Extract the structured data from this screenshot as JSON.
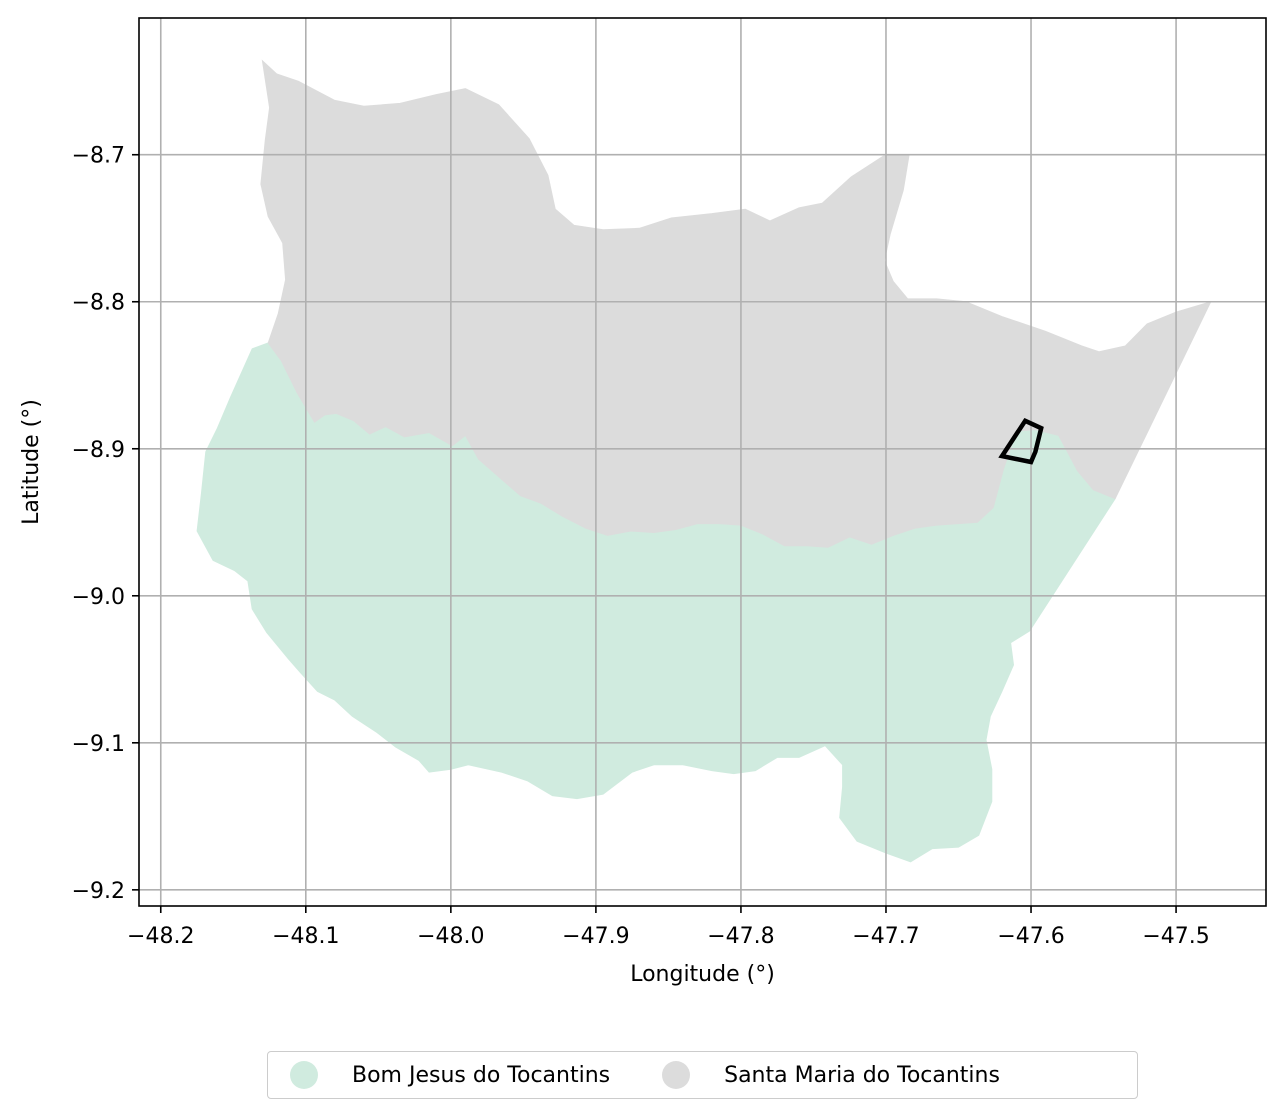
{
  "chart_data": {
    "type": "map",
    "xlabel": "Longitude (°)",
    "ylabel": "Latitude (°)",
    "xlim": [
      -48.215,
      -47.438
    ],
    "ylim": [
      -9.211,
      -8.607
    ],
    "grid": true,
    "xticks": [
      {
        "value": -48.2,
        "label": "−48.2"
      },
      {
        "value": -48.1,
        "label": "−48.1"
      },
      {
        "value": -48.0,
        "label": "−48.0"
      },
      {
        "value": -47.9,
        "label": "−47.9"
      },
      {
        "value": -47.8,
        "label": "−47.8"
      },
      {
        "value": -47.7,
        "label": "−47.7"
      },
      {
        "value": -47.6,
        "label": "−47.6"
      },
      {
        "value": -47.5,
        "label": "−47.5"
      }
    ],
    "yticks": [
      {
        "value": -8.7,
        "label": "−8.7"
      },
      {
        "value": -8.8,
        "label": "−8.8"
      },
      {
        "value": -8.9,
        "label": "−8.9"
      },
      {
        "value": -9.0,
        "label": "−9.0"
      },
      {
        "value": -9.1,
        "label": "−9.1"
      },
      {
        "value": -9.2,
        "label": "−9.2"
      }
    ],
    "legend_position": "bottom-center",
    "regions": [
      {
        "name": "Bom Jesus do Tocantins",
        "color": "#d0ebdf",
        "polygon": [
          [
            -48.137,
            -8.832
          ],
          [
            -48.126,
            -8.828
          ],
          [
            -48.117,
            -8.84
          ],
          [
            -48.106,
            -8.862
          ],
          [
            -48.094,
            -8.882
          ],
          [
            -48.087,
            -8.877
          ],
          [
            -48.079,
            -8.876
          ],
          [
            -48.067,
            -8.881
          ],
          [
            -48.056,
            -8.89
          ],
          [
            -48.045,
            -8.885
          ],
          [
            -48.032,
            -8.892
          ],
          [
            -48.015,
            -8.889
          ],
          [
            -47.999,
            -8.898
          ],
          [
            -47.99,
            -8.891
          ],
          [
            -47.981,
            -8.907
          ],
          [
            -47.966,
            -8.92
          ],
          [
            -47.952,
            -8.932
          ],
          [
            -47.938,
            -8.937
          ],
          [
            -47.923,
            -8.946
          ],
          [
            -47.907,
            -8.954
          ],
          [
            -47.892,
            -8.959
          ],
          [
            -47.876,
            -8.956
          ],
          [
            -47.86,
            -8.957
          ],
          [
            -47.845,
            -8.955
          ],
          [
            -47.83,
            -8.951
          ],
          [
            -47.815,
            -8.951
          ],
          [
            -47.8,
            -8.952
          ],
          [
            -47.785,
            -8.958
          ],
          [
            -47.77,
            -8.966
          ],
          [
            -47.755,
            -8.966
          ],
          [
            -47.74,
            -8.967
          ],
          [
            -47.725,
            -8.96
          ],
          [
            -47.71,
            -8.965
          ],
          [
            -47.695,
            -8.959
          ],
          [
            -47.68,
            -8.954
          ],
          [
            -47.665,
            -8.952
          ],
          [
            -47.65,
            -8.951
          ],
          [
            -47.637,
            -8.95
          ],
          [
            -47.626,
            -8.94
          ],
          [
            -47.619,
            -8.914
          ],
          [
            -47.61,
            -8.888
          ],
          [
            -47.597,
            -8.887
          ],
          [
            -47.581,
            -8.891
          ],
          [
            -47.575,
            -8.902
          ],
          [
            -47.568,
            -8.915
          ],
          [
            -47.557,
            -8.928
          ],
          [
            -47.542,
            -8.934
          ],
          [
            -47.601,
            -9.024
          ],
          [
            -47.614,
            -9.032
          ],
          [
            -47.612,
            -9.047
          ],
          [
            -47.62,
            -9.065
          ],
          [
            -47.628,
            -9.082
          ],
          [
            -47.631,
            -9.098
          ],
          [
            -47.627,
            -9.118
          ],
          [
            -47.627,
            -9.14
          ],
          [
            -47.636,
            -9.163
          ],
          [
            -47.65,
            -9.171
          ],
          [
            -47.668,
            -9.172
          ],
          [
            -47.683,
            -9.181
          ],
          [
            -47.7,
            -9.175
          ],
          [
            -47.72,
            -9.167
          ],
          [
            -47.732,
            -9.151
          ],
          [
            -47.73,
            -9.13
          ],
          [
            -47.73,
            -9.115
          ],
          [
            -47.742,
            -9.102
          ],
          [
            -47.76,
            -9.11
          ],
          [
            -47.775,
            -9.11
          ],
          [
            -47.79,
            -9.119
          ],
          [
            -47.805,
            -9.121
          ],
          [
            -47.82,
            -9.119
          ],
          [
            -47.84,
            -9.115
          ],
          [
            -47.86,
            -9.115
          ],
          [
            -47.875,
            -9.12
          ],
          [
            -47.895,
            -9.135
          ],
          [
            -47.913,
            -9.138
          ],
          [
            -47.93,
            -9.136
          ],
          [
            -47.947,
            -9.126
          ],
          [
            -47.965,
            -9.12
          ],
          [
            -47.988,
            -9.115
          ],
          [
            -48.0,
            -9.118
          ],
          [
            -48.015,
            -9.12
          ],
          [
            -48.022,
            -9.112
          ],
          [
            -48.038,
            -9.103
          ],
          [
            -48.051,
            -9.093
          ],
          [
            -48.068,
            -9.082
          ],
          [
            -48.08,
            -9.071
          ],
          [
            -48.092,
            -9.065
          ],
          [
            -48.104,
            -9.052
          ],
          [
            -48.112,
            -9.043
          ],
          [
            -48.127,
            -9.025
          ],
          [
            -48.137,
            -9.009
          ],
          [
            -48.14,
            -8.99
          ],
          [
            -48.149,
            -8.983
          ],
          [
            -48.164,
            -8.976
          ],
          [
            -48.175,
            -8.956
          ],
          [
            -48.172,
            -8.93
          ],
          [
            -48.169,
            -8.902
          ],
          [
            -48.161,
            -8.886
          ],
          [
            -48.152,
            -8.865
          ]
        ]
      },
      {
        "name": "Santa Maria do Tocantins",
        "color": "#dcdcdc",
        "polygon": [
          [
            -48.13,
            -8.636
          ],
          [
            -48.12,
            -8.645
          ],
          [
            -48.105,
            -8.65
          ],
          [
            -48.08,
            -8.663
          ],
          [
            -48.06,
            -8.667
          ],
          [
            -48.035,
            -8.665
          ],
          [
            -48.01,
            -8.659
          ],
          [
            -47.99,
            -8.655
          ],
          [
            -47.967,
            -8.666
          ],
          [
            -47.946,
            -8.689
          ],
          [
            -47.933,
            -8.714
          ],
          [
            -47.928,
            -8.737
          ],
          [
            -47.915,
            -8.748
          ],
          [
            -47.895,
            -8.751
          ],
          [
            -47.87,
            -8.75
          ],
          [
            -47.848,
            -8.743
          ],
          [
            -47.82,
            -8.74
          ],
          [
            -47.797,
            -8.737
          ],
          [
            -47.78,
            -8.745
          ],
          [
            -47.76,
            -8.736
          ],
          [
            -47.744,
            -8.733
          ],
          [
            -47.724,
            -8.715
          ],
          [
            -47.702,
            -8.701
          ],
          [
            -47.684,
            -8.7
          ],
          [
            -47.688,
            -8.724
          ],
          [
            -47.697,
            -8.754
          ],
          [
            -47.701,
            -8.772
          ],
          [
            -47.695,
            -8.786
          ],
          [
            -47.685,
            -8.798
          ],
          [
            -47.665,
            -8.798
          ],
          [
            -47.645,
            -8.8
          ],
          [
            -47.62,
            -8.81
          ],
          [
            -47.59,
            -8.82
          ],
          [
            -47.565,
            -8.83
          ],
          [
            -47.553,
            -8.834
          ],
          [
            -47.535,
            -8.83
          ],
          [
            -47.52,
            -8.815
          ],
          [
            -47.5,
            -8.807
          ],
          [
            -47.476,
            -8.8
          ],
          [
            -47.542,
            -8.934
          ],
          [
            -47.557,
            -8.928
          ],
          [
            -47.568,
            -8.915
          ],
          [
            -47.575,
            -8.902
          ],
          [
            -47.581,
            -8.891
          ],
          [
            -47.597,
            -8.887
          ],
          [
            -47.61,
            -8.888
          ],
          [
            -47.619,
            -8.914
          ],
          [
            -47.626,
            -8.94
          ],
          [
            -47.637,
            -8.95
          ],
          [
            -47.65,
            -8.951
          ],
          [
            -47.665,
            -8.952
          ],
          [
            -47.68,
            -8.954
          ],
          [
            -47.695,
            -8.959
          ],
          [
            -47.71,
            -8.965
          ],
          [
            -47.725,
            -8.96
          ],
          [
            -47.74,
            -8.967
          ],
          [
            -47.755,
            -8.966
          ],
          [
            -47.77,
            -8.966
          ],
          [
            -47.785,
            -8.958
          ],
          [
            -47.8,
            -8.952
          ],
          [
            -47.815,
            -8.951
          ],
          [
            -47.83,
            -8.951
          ],
          [
            -47.845,
            -8.955
          ],
          [
            -47.86,
            -8.957
          ],
          [
            -47.876,
            -8.956
          ],
          [
            -47.892,
            -8.959
          ],
          [
            -47.907,
            -8.954
          ],
          [
            -47.923,
            -8.946
          ],
          [
            -47.938,
            -8.937
          ],
          [
            -47.952,
            -8.932
          ],
          [
            -47.966,
            -8.92
          ],
          [
            -47.981,
            -8.907
          ],
          [
            -47.99,
            -8.891
          ],
          [
            -47.999,
            -8.898
          ],
          [
            -48.015,
            -8.889
          ],
          [
            -48.032,
            -8.892
          ],
          [
            -48.045,
            -8.885
          ],
          [
            -48.056,
            -8.89
          ],
          [
            -48.067,
            -8.881
          ],
          [
            -48.079,
            -8.876
          ],
          [
            -48.087,
            -8.877
          ],
          [
            -48.094,
            -8.882
          ],
          [
            -48.106,
            -8.862
          ],
          [
            -48.117,
            -8.84
          ],
          [
            -48.126,
            -8.828
          ],
          [
            -48.119,
            -8.808
          ],
          [
            -48.114,
            -8.785
          ],
          [
            -48.116,
            -8.76
          ],
          [
            -48.126,
            -8.742
          ],
          [
            -48.131,
            -8.72
          ],
          [
            -48.128,
            -8.69
          ],
          [
            -48.125,
            -8.668
          ]
        ]
      }
    ],
    "outline": {
      "name": "marker",
      "color": "#000000",
      "polygon": [
        [
          -47.604,
          -8.881
        ],
        [
          -47.593,
          -8.886
        ],
        [
          -47.597,
          -8.902
        ],
        [
          -47.6,
          -8.909
        ],
        [
          -47.62,
          -8.905
        ]
      ]
    }
  }
}
